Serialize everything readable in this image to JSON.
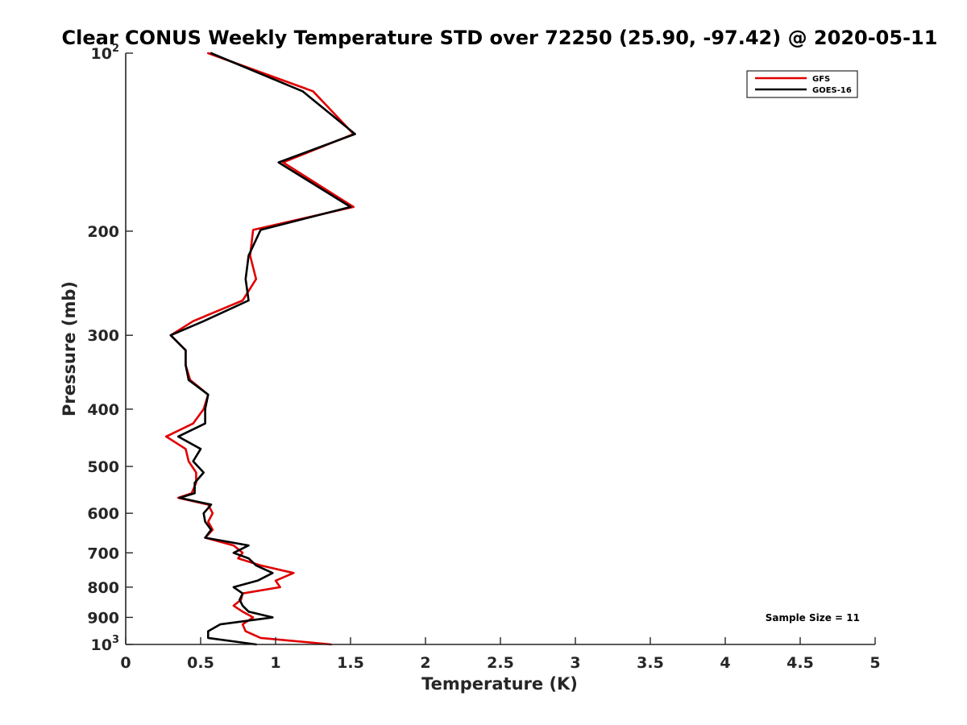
{
  "chart_data": {
    "type": "line",
    "title": "Clear CONUS Weekly Temperature STD over 72250 (25.90, -97.42) @ 2020-05-11",
    "xlabel": "Temperature (K)",
    "ylabel": "Pressure (mb)",
    "xlim": [
      0,
      5
    ],
    "ylim": [
      1000,
      100
    ],
    "y_scale": "log",
    "y_reversed": true,
    "grid": false,
    "legend_position": "top-right",
    "x_ticks": [
      {
        "value": 0,
        "label": "0"
      },
      {
        "value": 0.5,
        "label": "0.5"
      },
      {
        "value": 1,
        "label": "1"
      },
      {
        "value": 1.5,
        "label": "1.5"
      },
      {
        "value": 2,
        "label": "2"
      },
      {
        "value": 2.5,
        "label": "2.5"
      },
      {
        "value": 3,
        "label": "3"
      },
      {
        "value": 3.5,
        "label": "3.5"
      },
      {
        "value": 4,
        "label": "4"
      },
      {
        "value": 4.5,
        "label": "4.5"
      },
      {
        "value": 5,
        "label": "5"
      }
    ],
    "y_ticks": [
      {
        "value": 100,
        "base": "10",
        "exp": "2"
      },
      {
        "value": 200,
        "base": "200",
        "exp": ""
      },
      {
        "value": 300,
        "base": "300",
        "exp": ""
      },
      {
        "value": 400,
        "base": "400",
        "exp": ""
      },
      {
        "value": 500,
        "base": "500",
        "exp": ""
      },
      {
        "value": 600,
        "base": "600",
        "exp": ""
      },
      {
        "value": 700,
        "base": "700",
        "exp": ""
      },
      {
        "value": 800,
        "base": "800",
        "exp": ""
      },
      {
        "value": 900,
        "base": "900",
        "exp": ""
      },
      {
        "value": 1000,
        "base": "10",
        "exp": "3"
      }
    ],
    "series": [
      {
        "name": "GFS",
        "color": "#e00000",
        "points": [
          [
            0.55,
            100
          ],
          [
            1.25,
            116
          ],
          [
            1.52,
            137
          ],
          [
            1.05,
            153
          ],
          [
            1.52,
            182
          ],
          [
            0.85,
            199
          ],
          [
            0.83,
            220
          ],
          [
            0.87,
            241
          ],
          [
            0.78,
            262
          ],
          [
            0.45,
            284
          ],
          [
            0.3,
            300
          ],
          [
            0.4,
            318
          ],
          [
            0.4,
            337
          ],
          [
            0.43,
            357
          ],
          [
            0.55,
            378
          ],
          [
            0.52,
            400
          ],
          [
            0.45,
            423
          ],
          [
            0.27,
            445
          ],
          [
            0.4,
            467
          ],
          [
            0.42,
            490
          ],
          [
            0.47,
            512
          ],
          [
            0.47,
            533
          ],
          [
            0.44,
            555
          ],
          [
            0.35,
            565
          ],
          [
            0.55,
            580
          ],
          [
            0.58,
            600
          ],
          [
            0.55,
            620
          ],
          [
            0.58,
            640
          ],
          [
            0.53,
            660
          ],
          [
            0.72,
            680
          ],
          [
            0.78,
            700
          ],
          [
            0.75,
            715
          ],
          [
            0.9,
            735
          ],
          [
            1.12,
            757
          ],
          [
            1.0,
            780
          ],
          [
            1.03,
            800
          ],
          [
            0.78,
            820
          ],
          [
            0.77,
            840
          ],
          [
            0.72,
            860
          ],
          [
            0.78,
            880
          ],
          [
            0.85,
            900
          ],
          [
            0.78,
            925
          ],
          [
            0.8,
            950
          ],
          [
            0.9,
            975
          ],
          [
            1.37,
            1000
          ]
        ]
      },
      {
        "name": "GOES-16",
        "color": "#000000",
        "points": [
          [
            0.57,
            100
          ],
          [
            1.18,
            116
          ],
          [
            1.53,
            137
          ],
          [
            1.02,
            153
          ],
          [
            1.5,
            182
          ],
          [
            0.9,
            199
          ],
          [
            0.82,
            220
          ],
          [
            0.8,
            241
          ],
          [
            0.82,
            262
          ],
          [
            0.52,
            284
          ],
          [
            0.3,
            300
          ],
          [
            0.4,
            318
          ],
          [
            0.4,
            337
          ],
          [
            0.42,
            357
          ],
          [
            0.55,
            378
          ],
          [
            0.53,
            400
          ],
          [
            0.53,
            423
          ],
          [
            0.35,
            445
          ],
          [
            0.5,
            467
          ],
          [
            0.45,
            490
          ],
          [
            0.52,
            512
          ],
          [
            0.46,
            533
          ],
          [
            0.46,
            555
          ],
          [
            0.36,
            565
          ],
          [
            0.57,
            580
          ],
          [
            0.52,
            600
          ],
          [
            0.53,
            620
          ],
          [
            0.57,
            640
          ],
          [
            0.53,
            660
          ],
          [
            0.82,
            680
          ],
          [
            0.72,
            700
          ],
          [
            0.82,
            715
          ],
          [
            0.87,
            735
          ],
          [
            0.98,
            757
          ],
          [
            0.88,
            780
          ],
          [
            0.72,
            800
          ],
          [
            0.78,
            820
          ],
          [
            0.76,
            840
          ],
          [
            0.78,
            860
          ],
          [
            0.82,
            880
          ],
          [
            0.98,
            900
          ],
          [
            0.63,
            925
          ],
          [
            0.55,
            950
          ],
          [
            0.55,
            975
          ],
          [
            0.87,
            1000
          ]
        ]
      }
    ],
    "annotation": "Sample Size = 11"
  }
}
